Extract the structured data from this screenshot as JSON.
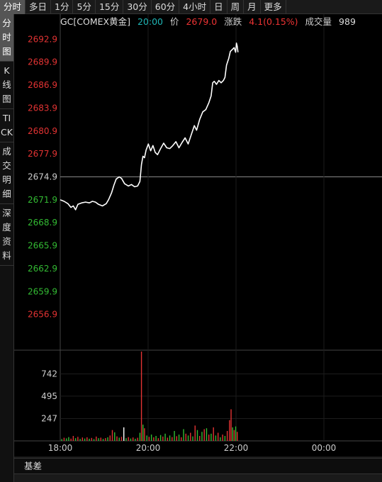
{
  "top_tabs": [
    "分时",
    "多日",
    "1分",
    "5分",
    "15分",
    "30分",
    "60分",
    "4小时",
    "日",
    "周",
    "月",
    "更多"
  ],
  "side_tabs": [
    "分时图",
    "K线图",
    "TICK",
    "成交明细",
    "深度资料"
  ],
  "info": {
    "symbol": "GC[COMEX黄金]",
    "time": "20:00",
    "price_label": "价",
    "price": "2679.0",
    "change_label": "涨跌",
    "change": "4.1(0.15%)",
    "volume_label": "成交量",
    "volume": "989"
  },
  "bottom_tab": "基差",
  "colors": {
    "up": "#e33333",
    "down": "#33bb33",
    "line": "#ffffff",
    "ref": "#aaaaaa"
  },
  "chart_data": {
    "type": "line",
    "reference_price": 2674.9,
    "ylim": [
      2653.9,
      2695.9
    ],
    "price_ticks": [
      "2692.9",
      "2689.9",
      "2686.9",
      "2683.9",
      "2680.9",
      "2677.9",
      "2674.9",
      "2671.9",
      "2668.9",
      "2665.9",
      "2662.9",
      "2659.9",
      "2656.9"
    ],
    "volume_ticks": [
      "742",
      "495",
      "247"
    ],
    "volume_max": 989,
    "time_ticks": [
      "18:00",
      "20:00",
      "22:00",
      "00:00"
    ],
    "session_minutes": 420,
    "price_series": [
      [
        0,
        2671.9
      ],
      [
        5,
        2671.7
      ],
      [
        10,
        2671.4
      ],
      [
        14,
        2670.9
      ],
      [
        17,
        2671.1
      ],
      [
        20,
        2670.6
      ],
      [
        23,
        2671.3
      ],
      [
        28,
        2671.5
      ],
      [
        33,
        2671.6
      ],
      [
        38,
        2671.5
      ],
      [
        42,
        2671.7
      ],
      [
        46,
        2671.6
      ],
      [
        50,
        2671.3
      ],
      [
        55,
        2671.1
      ],
      [
        60,
        2671.4
      ],
      [
        63,
        2671.9
      ],
      [
        67,
        2672.8
      ],
      [
        70,
        2673.8
      ],
      [
        73,
        2674.6
      ],
      [
        77,
        2674.9
      ],
      [
        80,
        2674.7
      ],
      [
        84,
        2674.0
      ],
      [
        89,
        2673.7
      ],
      [
        93,
        2673.9
      ],
      [
        97,
        2673.6
      ],
      [
        101,
        2673.7
      ],
      [
        104,
        2674.3
      ],
      [
        106,
        2676.5
      ],
      [
        108,
        2677.6
      ],
      [
        110,
        2677.4
      ],
      [
        112,
        2678.4
      ],
      [
        115,
        2679.2
      ],
      [
        118,
        2678.3
      ],
      [
        121,
        2679.0
      ],
      [
        124,
        2678.1
      ],
      [
        127,
        2677.8
      ],
      [
        131,
        2678.6
      ],
      [
        135,
        2679.3
      ],
      [
        139,
        2678.7
      ],
      [
        143,
        2678.6
      ],
      [
        147,
        2679.0
      ],
      [
        151,
        2679.5
      ],
      [
        155,
        2678.7
      ],
      [
        159,
        2679.4
      ],
      [
        163,
        2680.0
      ],
      [
        167,
        2679.2
      ],
      [
        171,
        2680.4
      ],
      [
        175,
        2681.6
      ],
      [
        178,
        2681.0
      ],
      [
        182,
        2682.4
      ],
      [
        186,
        2683.4
      ],
      [
        190,
        2683.7
      ],
      [
        194,
        2684.6
      ],
      [
        197,
        2685.5
      ],
      [
        199,
        2687.2
      ],
      [
        201,
        2687.4
      ],
      [
        204,
        2687.0
      ],
      [
        207,
        2687.5
      ],
      [
        210,
        2687.2
      ],
      [
        213,
        2687.5
      ],
      [
        215,
        2687.9
      ],
      [
        217,
        2689.5
      ],
      [
        220,
        2690.4
      ],
      [
        222,
        2691.3
      ],
      [
        225,
        2691.6
      ],
      [
        227,
        2691.8
      ],
      [
        229,
        2691.2
      ],
      [
        230,
        2692.4
      ],
      [
        231,
        2692.0
      ],
      [
        232,
        2691.2
      ]
    ],
    "volume_series": [
      [
        2,
        20,
        "g"
      ],
      [
        5,
        35,
        "r"
      ],
      [
        8,
        28,
        "g"
      ],
      [
        11,
        42,
        "g"
      ],
      [
        14,
        25,
        "r"
      ],
      [
        17,
        55,
        "r"
      ],
      [
        20,
        30,
        "g"
      ],
      [
        23,
        45,
        "r"
      ],
      [
        26,
        22,
        "g"
      ],
      [
        29,
        38,
        "r"
      ],
      [
        32,
        26,
        "g"
      ],
      [
        35,
        40,
        "r"
      ],
      [
        38,
        24,
        "g"
      ],
      [
        41,
        33,
        "r"
      ],
      [
        44,
        20,
        "g"
      ],
      [
        47,
        48,
        "r"
      ],
      [
        50,
        30,
        "g"
      ],
      [
        53,
        36,
        "r"
      ],
      [
        56,
        22,
        "g"
      ],
      [
        59,
        31,
        "r"
      ],
      [
        62,
        40,
        "g"
      ],
      [
        65,
        60,
        "r"
      ],
      [
        68,
        120,
        "r"
      ],
      [
        71,
        95,
        "g"
      ],
      [
        74,
        50,
        "r"
      ],
      [
        77,
        36,
        "g"
      ],
      [
        80,
        45,
        "r"
      ],
      [
        83,
        150,
        "w"
      ],
      [
        86,
        30,
        "g"
      ],
      [
        89,
        42,
        "r"
      ],
      [
        92,
        26,
        "g"
      ],
      [
        95,
        38,
        "r"
      ],
      [
        98,
        24,
        "g"
      ],
      [
        101,
        35,
        "r"
      ],
      [
        104,
        90,
        "g"
      ],
      [
        106,
        989,
        "r"
      ],
      [
        108,
        180,
        "g"
      ],
      [
        110,
        140,
        "r"
      ],
      [
        113,
        60,
        "g"
      ],
      [
        116,
        45,
        "r"
      ],
      [
        119,
        70,
        "g"
      ],
      [
        122,
        40,
        "r"
      ],
      [
        125,
        55,
        "g"
      ],
      [
        128,
        30,
        "r"
      ],
      [
        131,
        65,
        "g"
      ],
      [
        134,
        48,
        "r"
      ],
      [
        137,
        80,
        "g"
      ],
      [
        140,
        36,
        "r"
      ],
      [
        143,
        60,
        "g"
      ],
      [
        146,
        42,
        "r"
      ],
      [
        149,
        110,
        "g"
      ],
      [
        152,
        52,
        "r"
      ],
      [
        155,
        70,
        "g"
      ],
      [
        158,
        40,
        "r"
      ],
      [
        161,
        130,
        "g"
      ],
      [
        164,
        80,
        "r"
      ],
      [
        167,
        60,
        "g"
      ],
      [
        170,
        90,
        "r"
      ],
      [
        173,
        50,
        "g"
      ],
      [
        176,
        170,
        "r"
      ],
      [
        179,
        120,
        "g"
      ],
      [
        182,
        55,
        "r"
      ],
      [
        185,
        100,
        "g"
      ],
      [
        188,
        130,
        "r"
      ],
      [
        191,
        140,
        "g"
      ],
      [
        194,
        70,
        "r"
      ],
      [
        197,
        80,
        "g"
      ],
      [
        200,
        150,
        "r"
      ],
      [
        203,
        60,
        "g"
      ],
      [
        206,
        90,
        "r"
      ],
      [
        209,
        40,
        "g"
      ],
      [
        212,
        70,
        "r"
      ],
      [
        215,
        55,
        "g"
      ],
      [
        218,
        110,
        "r"
      ],
      [
        221,
        230,
        "r"
      ],
      [
        223,
        350,
        "r"
      ],
      [
        225,
        150,
        "g"
      ],
      [
        227,
        120,
        "r"
      ],
      [
        229,
        160,
        "g"
      ],
      [
        231,
        100,
        "r"
      ]
    ]
  }
}
